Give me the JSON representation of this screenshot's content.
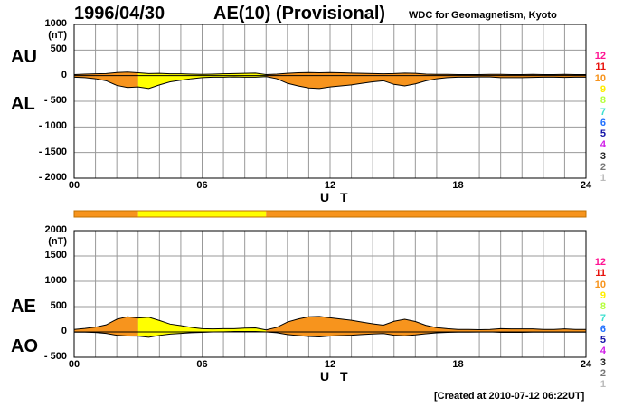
{
  "header": {
    "date": "1996/04/30",
    "title": "AE(10) (Provisional)",
    "source": "WDC for Geomagnetism, Kyoto",
    "created": "[Created at 2010-07-12 06:22UT]"
  },
  "colors": {
    "grid": "#999999",
    "level_10": "#f7941d",
    "level_9": "#ffff00",
    "level_8": "#c0ff3e",
    "outline": "#000000"
  },
  "legend": {
    "levels": [
      {
        "label": "12",
        "color": "#ff1493"
      },
      {
        "label": "11",
        "color": "#e8120c"
      },
      {
        "label": "10",
        "color": "#f7941d"
      },
      {
        "label": "9",
        "color": "#ffee00"
      },
      {
        "label": "8",
        "color": "#b5ff3b"
      },
      {
        "label": "7",
        "color": "#3fe0d0"
      },
      {
        "label": "6",
        "color": "#1e6fff"
      },
      {
        "label": "5",
        "color": "#1515a8"
      },
      {
        "label": "4",
        "color": "#d01ee8"
      },
      {
        "label": "3",
        "color": "#222222"
      },
      {
        "label": "2",
        "color": "#777777"
      },
      {
        "label": "1",
        "color": "#bbbbbb"
      }
    ]
  },
  "chart_data": [
    {
      "type": "area",
      "title": "AU / AL",
      "series_labels": {
        "upper": "AU",
        "lower": "AL"
      },
      "unit": "(nT)",
      "ylim": [
        -2000,
        1000
      ],
      "yticks": [
        -2000,
        -1500,
        -1000,
        -500,
        0,
        500,
        1000
      ],
      "ytick_labels": [
        "- 2000",
        "- 1500",
        "- 1000",
        "- 500",
        "0",
        "500",
        "1000"
      ],
      "xlim": [
        0,
        24
      ],
      "xticks": [
        0,
        6,
        12,
        18,
        24
      ],
      "xtick_labels": [
        "00",
        "06",
        "12",
        "18",
        "24"
      ],
      "xlabel": "U T",
      "grid": true,
      "color_segments": [
        {
          "from": 0,
          "to": 3,
          "level": "10"
        },
        {
          "from": 3,
          "to": 9,
          "level": "9"
        },
        {
          "from": 9,
          "to": 24,
          "level": "10"
        }
      ],
      "series": [
        {
          "name": "AU",
          "x": [
            0,
            0.5,
            1,
            1.5,
            2,
            2.5,
            3,
            3.5,
            4,
            4.5,
            5,
            5.5,
            6,
            6.5,
            7,
            7.5,
            8,
            8.5,
            9,
            9.5,
            10,
            10.5,
            11,
            11.5,
            12,
            12.5,
            13,
            13.5,
            14,
            14.5,
            15,
            15.5,
            16,
            16.5,
            17,
            17.5,
            18,
            18.5,
            19,
            19.5,
            20,
            20.5,
            21,
            21.5,
            22,
            22.5,
            23,
            23.5,
            24
          ],
          "values": [
            20,
            30,
            35,
            40,
            60,
            70,
            55,
            40,
            45,
            35,
            35,
            30,
            25,
            30,
            35,
            40,
            45,
            50,
            20,
            30,
            45,
            55,
            60,
            55,
            60,
            55,
            50,
            45,
            40,
            35,
            40,
            50,
            45,
            30,
            25,
            25,
            20,
            20,
            20,
            25,
            25,
            20,
            20,
            25,
            20,
            20,
            25,
            20,
            20
          ]
        },
        {
          "name": "AL",
          "x": [
            0,
            0.5,
            1,
            1.5,
            2,
            2.5,
            3,
            3.5,
            4,
            4.5,
            5,
            5.5,
            6,
            6.5,
            7,
            7.5,
            8,
            8.5,
            9,
            9.5,
            10,
            10.5,
            11,
            11.5,
            12,
            12.5,
            13,
            13.5,
            14,
            14.5,
            15,
            15.5,
            16,
            16.5,
            17,
            17.5,
            18,
            18.5,
            19,
            19.5,
            20,
            20.5,
            21,
            21.5,
            22,
            22.5,
            23,
            23.5,
            24
          ],
          "values": [
            -30,
            -40,
            -60,
            -100,
            -190,
            -230,
            -220,
            -250,
            -180,
            -120,
            -90,
            -60,
            -40,
            -30,
            -30,
            -25,
            -30,
            -30,
            -20,
            -60,
            -150,
            -200,
            -240,
            -250,
            -220,
            -200,
            -180,
            -150,
            -120,
            -100,
            -170,
            -200,
            -160,
            -100,
            -60,
            -40,
            -30,
            -30,
            -25,
            -25,
            -40,
            -40,
            -40,
            -35,
            -30,
            -30,
            -35,
            -30,
            -30
          ]
        }
      ]
    },
    {
      "type": "area",
      "title": "AE / AO",
      "series_labels": {
        "upper": "AE",
        "lower": "AO"
      },
      "unit": "(nT)",
      "ylim": [
        -500,
        2000
      ],
      "yticks": [
        -500,
        0,
        500,
        1000,
        1500,
        2000
      ],
      "ytick_labels": [
        "- 500",
        "0",
        "500",
        "1000",
        "1500",
        "2000"
      ],
      "xlim": [
        0,
        24
      ],
      "xticks": [
        0,
        6,
        12,
        18,
        24
      ],
      "xtick_labels": [
        "00",
        "06",
        "12",
        "18",
        "24"
      ],
      "xlabel": "U T",
      "grid": true,
      "color_segments": [
        {
          "from": 0,
          "to": 3,
          "level": "10"
        },
        {
          "from": 3,
          "to": 9,
          "level": "9"
        },
        {
          "from": 9,
          "to": 24,
          "level": "10"
        }
      ],
      "series": [
        {
          "name": "AE",
          "x": [
            0,
            0.5,
            1,
            1.5,
            2,
            2.5,
            3,
            3.5,
            4,
            4.5,
            5,
            5.5,
            6,
            6.5,
            7,
            7.5,
            8,
            8.5,
            9,
            9.5,
            10,
            10.5,
            11,
            11.5,
            12,
            12.5,
            13,
            13.5,
            14,
            14.5,
            15,
            15.5,
            16,
            16.5,
            17,
            17.5,
            18,
            18.5,
            19,
            19.5,
            20,
            20.5,
            21,
            21.5,
            22,
            22.5,
            23,
            23.5,
            24
          ],
          "values": [
            50,
            70,
            95,
            140,
            250,
            300,
            275,
            290,
            225,
            155,
            125,
            90,
            65,
            60,
            65,
            65,
            75,
            80,
            40,
            90,
            195,
            255,
            300,
            305,
            280,
            255,
            230,
            195,
            160,
            135,
            210,
            250,
            205,
            130,
            85,
            65,
            50,
            50,
            45,
            50,
            65,
            60,
            60,
            60,
            50,
            50,
            60,
            50,
            50
          ]
        },
        {
          "name": "AO",
          "x": [
            0,
            0.5,
            1,
            1.5,
            2,
            2.5,
            3,
            3.5,
            4,
            4.5,
            5,
            5.5,
            6,
            6.5,
            7,
            7.5,
            8,
            8.5,
            9,
            9.5,
            10,
            10.5,
            11,
            11.5,
            12,
            12.5,
            13,
            13.5,
            14,
            14.5,
            15,
            15.5,
            16,
            16.5,
            17,
            17.5,
            18,
            18.5,
            19,
            19.5,
            20,
            20.5,
            21,
            21.5,
            22,
            22.5,
            23,
            23.5,
            24
          ],
          "values": [
            -5,
            -5,
            -12,
            -30,
            -65,
            -80,
            -82,
            -105,
            -68,
            -43,
            -28,
            -15,
            -8,
            0,
            2,
            8,
            8,
            10,
            0,
            -15,
            -52,
            -72,
            -90,
            -98,
            -80,
            -72,
            -65,
            -52,
            -40,
            -32,
            -65,
            -75,
            -58,
            -35,
            -18,
            -8,
            -5,
            -5,
            -3,
            0,
            -8,
            -10,
            -10,
            -5,
            -5,
            -5,
            -5,
            -5,
            -5
          ]
        }
      ]
    }
  ],
  "activity_bar": {
    "segments": [
      {
        "from": 0,
        "to": 3,
        "level": "10"
      },
      {
        "from": 3,
        "to": 9,
        "level": "9"
      },
      {
        "from": 9,
        "to": 24,
        "level": "10"
      }
    ]
  }
}
